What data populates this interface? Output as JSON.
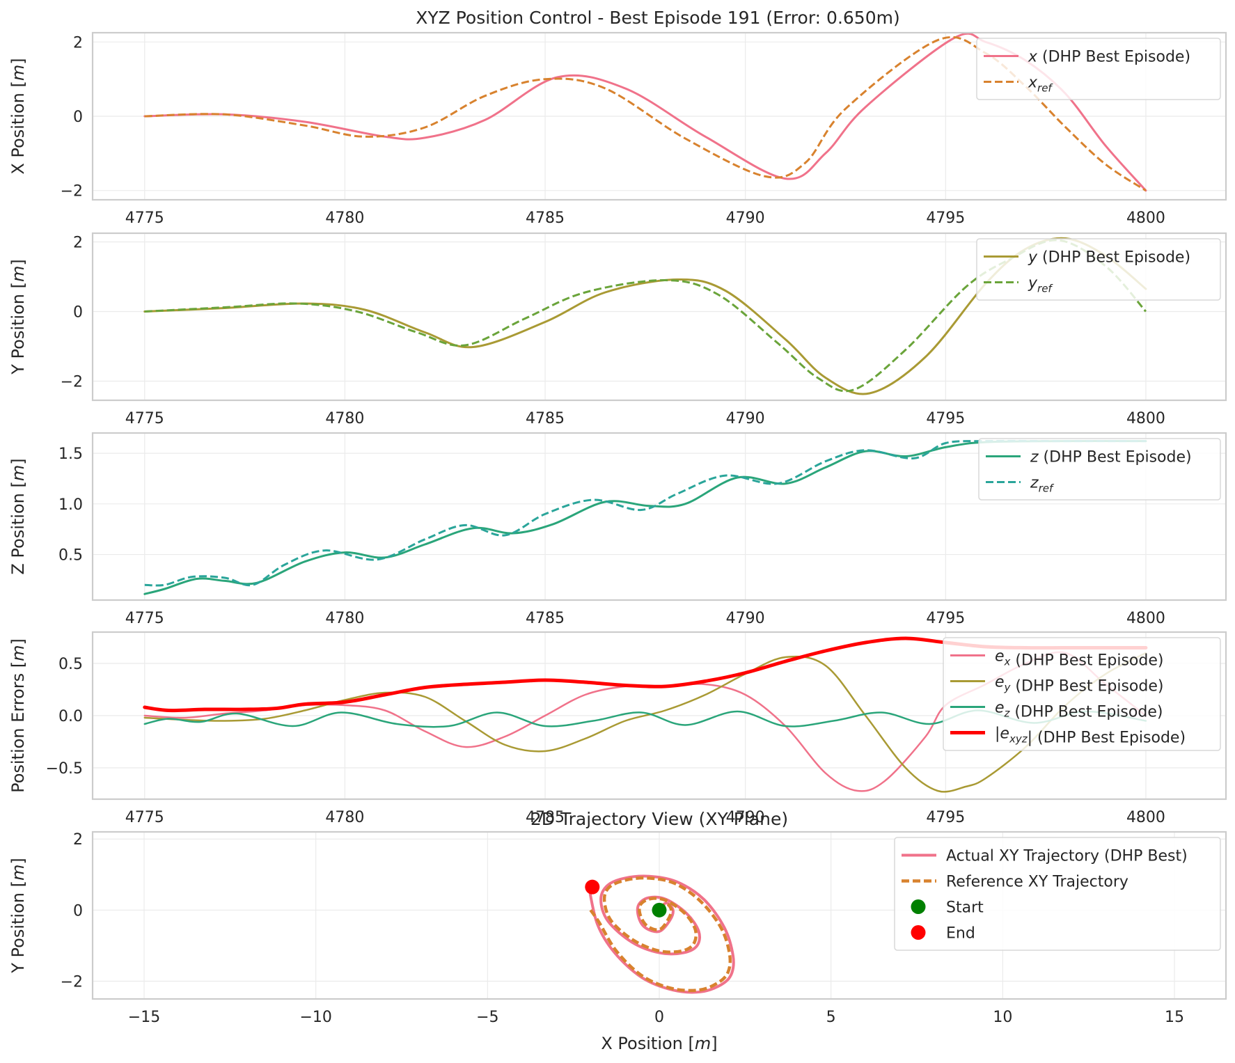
{
  "figure": {
    "title": "XYZ Position Control - Best Episode 191 (Error: 0.650m)"
  },
  "chart_data": [
    {
      "type": "line",
      "id": "x-position",
      "ylabel_parts": [
        [
          "X Position [",
          ""
        ],
        [
          "m",
          "i"
        ],
        [
          "]",
          ""
        ]
      ],
      "xlim": [
        4773.7,
        4802.0
      ],
      "ylim": [
        -2.25,
        2.25
      ],
      "xticks": [
        4775,
        4780,
        4785,
        4790,
        4795,
        4800
      ],
      "yticks": [
        -2,
        0,
        2
      ],
      "grid": true,
      "legend": "top-right",
      "series": [
        {
          "name": "x (DHP Best Episode)",
          "legend_parts": [
            [
              "x",
              "i"
            ],
            [
              " (DHP Best Episode)",
              ""
            ]
          ],
          "color": "#f0728a",
          "dash": "solid",
          "width": 3,
          "x": [
            4775,
            4777,
            4779,
            4781,
            4782,
            4783.5,
            4785.3,
            4787,
            4789,
            4791,
            4792,
            4793,
            4795.2,
            4796,
            4797,
            4798,
            4799,
            4800
          ],
          "y": [
            0,
            0.05,
            -0.15,
            -0.55,
            -0.58,
            -0.1,
            1.05,
            0.75,
            -0.55,
            -1.68,
            -1.0,
            0.25,
            2.1,
            2.0,
            1.5,
            0.6,
            -0.8,
            -2.0
          ]
        },
        {
          "name": "x_ref",
          "legend_parts": [
            [
              "x",
              "i"
            ],
            [
              "ref",
              "sub"
            ]
          ],
          "color": "#d8822e",
          "dash": "dashed",
          "width": 3,
          "x": [
            4775,
            4777,
            4779,
            4780.5,
            4782,
            4783.5,
            4785,
            4786.5,
            4788.5,
            4790.5,
            4791.5,
            4792.5,
            4794.8,
            4796,
            4797,
            4798,
            4799,
            4800
          ],
          "y": [
            0,
            0.05,
            -0.25,
            -0.55,
            -0.3,
            0.55,
            1.0,
            0.75,
            -0.6,
            -1.62,
            -1.25,
            0.2,
            2.05,
            1.7,
            0.8,
            -0.3,
            -1.3,
            -2.0
          ]
        }
      ]
    },
    {
      "type": "line",
      "id": "y-position",
      "ylabel_parts": [
        [
          "Y Position [",
          ""
        ],
        [
          "m",
          "i"
        ],
        [
          "]",
          ""
        ]
      ],
      "xlim": [
        4773.7,
        4802.0
      ],
      "ylim": [
        -2.55,
        2.25
      ],
      "xticks": [
        4775,
        4780,
        4785,
        4790,
        4795,
        4800
      ],
      "yticks": [
        -2,
        0,
        2
      ],
      "grid": true,
      "legend": "top-right",
      "series": [
        {
          "name": "y (DHP Best Episode)",
          "legend_parts": [
            [
              "y",
              "i"
            ],
            [
              " (DHP Best Episode)",
              ""
            ]
          ],
          "color": "#a99a34",
          "dash": "solid",
          "width": 3,
          "x": [
            4775,
            4777,
            4779,
            4780.5,
            4782,
            4783.2,
            4785,
            4786.5,
            4788.3,
            4789.5,
            4791,
            4792,
            4793.1,
            4794.5,
            4796,
            4797,
            4798,
            4799,
            4800
          ],
          "y": [
            0,
            0.1,
            0.23,
            0.05,
            -0.6,
            -1.02,
            -0.3,
            0.55,
            0.92,
            0.6,
            -0.8,
            -1.9,
            -2.35,
            -1.3,
            0.8,
            1.8,
            2.1,
            1.6,
            0.65
          ]
        },
        {
          "name": "y_ref",
          "legend_parts": [
            [
              "y",
              "i"
            ],
            [
              "ref",
              "sub"
            ]
          ],
          "color": "#6aa43a",
          "dash": "dashed",
          "width": 3,
          "x": [
            4775,
            4777,
            4778.8,
            4780.3,
            4781.8,
            4783,
            4784.5,
            4786,
            4788,
            4789.3,
            4790.8,
            4791.8,
            4792.7,
            4794,
            4795.5,
            4796.6,
            4797.8,
            4799,
            4800
          ],
          "y": [
            0,
            0.12,
            0.23,
            0.0,
            -0.6,
            -0.97,
            -0.2,
            0.55,
            0.9,
            0.5,
            -0.9,
            -1.9,
            -2.25,
            -1.1,
            0.7,
            1.5,
            2.05,
            1.3,
            0.0
          ]
        }
      ]
    },
    {
      "type": "line",
      "id": "z-position",
      "ylabel_parts": [
        [
          "Z Position [",
          ""
        ],
        [
          "m",
          "i"
        ],
        [
          "]",
          ""
        ]
      ],
      "xlim": [
        4773.7,
        4802.0
      ],
      "ylim": [
        0.05,
        1.7
      ],
      "xticks": [
        4775,
        4780,
        4785,
        4790,
        4795,
        4800
      ],
      "yticks": [
        0.5,
        1.0,
        1.5
      ],
      "ytick_labels": [
        "0.5",
        "1.0",
        "1.5"
      ],
      "grid": true,
      "legend": "top-right",
      "series": [
        {
          "name": "z (DHP Best Episode)",
          "legend_parts": [
            [
              "z",
              "i"
            ],
            [
              " (DHP Best Episode)",
              ""
            ]
          ],
          "color": "#2aa57a",
          "dash": "solid",
          "width": 3,
          "x": [
            4775,
            4775.5,
            4776.3,
            4777,
            4777.8,
            4779,
            4780,
            4781,
            4782,
            4783.2,
            4784.2,
            4785.2,
            4786.5,
            4787.6,
            4788.5,
            4789.8,
            4791,
            4792,
            4793,
            4794,
            4795,
            4796,
            4798,
            4800
          ],
          "y": [
            0.11,
            0.16,
            0.26,
            0.24,
            0.22,
            0.43,
            0.52,
            0.47,
            0.6,
            0.76,
            0.71,
            0.8,
            1.02,
            0.98,
            1.0,
            1.26,
            1.2,
            1.36,
            1.52,
            1.47,
            1.56,
            1.61,
            1.62,
            1.62
          ]
        },
        {
          "name": "z_ref",
          "legend_parts": [
            [
              "z",
              "i"
            ],
            [
              "ref",
              "sub"
            ]
          ],
          "color": "#2aa59a",
          "dash": "dashed",
          "width": 3,
          "x": [
            4775,
            4775.5,
            4776.2,
            4777,
            4777.7,
            4778.5,
            4779.5,
            4780.8,
            4782,
            4783,
            4784,
            4785,
            4786.2,
            4787.4,
            4788.3,
            4789.5,
            4790.8,
            4792,
            4793,
            4794.2,
            4795,
            4796,
            4798,
            4800
          ],
          "y": [
            0.2,
            0.2,
            0.28,
            0.27,
            0.2,
            0.4,
            0.54,
            0.45,
            0.65,
            0.79,
            0.69,
            0.9,
            1.04,
            0.94,
            1.1,
            1.28,
            1.2,
            1.42,
            1.53,
            1.45,
            1.6,
            1.62,
            1.62,
            1.62
          ]
        }
      ]
    },
    {
      "type": "line",
      "id": "position-errors",
      "ylabel_parts": [
        [
          "Position Errors [",
          ""
        ],
        [
          "m",
          "i"
        ],
        [
          "]",
          ""
        ]
      ],
      "xlim": [
        4773.7,
        4802.0
      ],
      "ylim": [
        -0.8,
        0.8
      ],
      "xticks": [
        4775,
        4780,
        4785,
        4790,
        4795,
        4800
      ],
      "yticks": [
        -0.5,
        0.0,
        0.5
      ],
      "ytick_labels": [
        "−0.5",
        "0.0",
        "0.5"
      ],
      "grid": true,
      "legend": "top-right",
      "series": [
        {
          "name": "e_x (DHP Best Episode)",
          "legend_parts": [
            [
              "e",
              "i"
            ],
            [
              "x",
              "sub"
            ],
            [
              " (DHP Best Episode)",
              ""
            ]
          ],
          "color": "#f0728a",
          "dash": "solid",
          "width": 2.5,
          "x": [
            4775,
            4776,
            4777,
            4778,
            4779,
            4780,
            4781,
            4782,
            4783,
            4784,
            4785,
            4786,
            4787,
            4788,
            4789,
            4790,
            4791,
            4792,
            4792.8,
            4793.5,
            4794.5,
            4795,
            4796,
            4797,
            4798,
            4799,
            4800
          ],
          "y": [
            0.0,
            -0.02,
            0.02,
            0.05,
            0.1,
            0.1,
            0.05,
            -0.15,
            -0.3,
            -0.2,
            0.0,
            0.2,
            0.28,
            0.28,
            0.3,
            0.2,
            -0.1,
            -0.55,
            -0.72,
            -0.62,
            -0.2,
            0.1,
            0.3,
            0.5,
            0.6,
            0.3,
            0.0
          ]
        },
        {
          "name": "e_y (DHP Best Episode)",
          "legend_parts": [
            [
              "e",
              "i"
            ],
            [
              "y",
              "sub"
            ],
            [
              " (DHP Best Episode)",
              ""
            ]
          ],
          "color": "#a99a34",
          "dash": "solid",
          "width": 2.5,
          "x": [
            4775,
            4776,
            4777,
            4778,
            4779,
            4780,
            4781,
            4782,
            4783,
            4784,
            4785,
            4786,
            4787,
            4788,
            4789,
            4790,
            4791,
            4792,
            4793,
            4794,
            4794.8,
            4795.5,
            4796,
            4797,
            4798,
            4799,
            4800
          ],
          "y": [
            -0.02,
            -0.04,
            -0.05,
            -0.03,
            0.05,
            0.15,
            0.22,
            0.18,
            -0.05,
            -0.28,
            -0.34,
            -0.22,
            -0.05,
            0.05,
            0.2,
            0.4,
            0.56,
            0.48,
            0.0,
            -0.5,
            -0.72,
            -0.68,
            -0.6,
            -0.3,
            0.1,
            0.4,
            0.6
          ]
        },
        {
          "name": "e_z (DHP Best Episode)",
          "legend_parts": [
            [
              "e",
              "i"
            ],
            [
              "z",
              "sub"
            ],
            [
              " (DHP Best Episode)",
              ""
            ]
          ],
          "color": "#2aa57a",
          "dash": "solid",
          "width": 2.5,
          "x": [
            4775,
            4775.6,
            4776.4,
            4777.3,
            4778.7,
            4779.9,
            4781.3,
            4782.6,
            4783.8,
            4785,
            4786.2,
            4787.4,
            4788.5,
            4789.8,
            4791,
            4792.2,
            4793.4,
            4794.6,
            4795.8,
            4797.2,
            4798.5,
            4800
          ],
          "y": [
            -0.08,
            -0.03,
            -0.06,
            0.02,
            -0.1,
            0.03,
            -0.08,
            -0.1,
            0.03,
            -0.1,
            -0.05,
            0.03,
            -0.09,
            0.04,
            -0.1,
            -0.05,
            0.03,
            -0.08,
            0.05,
            -0.07,
            0.04,
            -0.05
          ]
        },
        {
          "name": "|e_xyz| (DHP Best Episode)",
          "legend_parts": [
            [
              "|",
              ""
            ],
            [
              "e",
              "i"
            ],
            [
              "xyz",
              "sub"
            ],
            [
              "| (DHP Best Episode)",
              ""
            ]
          ],
          "color": "#ff0000",
          "dash": "solid",
          "width": 5,
          "x": [
            4775,
            4775.6,
            4776.5,
            4777.5,
            4778.3,
            4779,
            4780,
            4781,
            4782,
            4783,
            4784,
            4785,
            4786,
            4787,
            4788,
            4789,
            4790,
            4791,
            4792,
            4793,
            4794,
            4795,
            4796,
            4797,
            4798,
            4799,
            4800
          ],
          "y": [
            0.08,
            0.05,
            0.06,
            0.06,
            0.07,
            0.11,
            0.13,
            0.2,
            0.27,
            0.3,
            0.32,
            0.34,
            0.32,
            0.29,
            0.28,
            0.33,
            0.41,
            0.52,
            0.62,
            0.7,
            0.74,
            0.7,
            0.66,
            0.65,
            0.65,
            0.65,
            0.65
          ]
        }
      ]
    },
    {
      "type": "line",
      "id": "trajectory-xy",
      "subtitle": "2D Trajectory View (XY Plane)",
      "xlabel_parts": [
        [
          "X Position [",
          ""
        ],
        [
          "m",
          "i"
        ],
        [
          "]",
          ""
        ]
      ],
      "ylabel_parts": [
        [
          "Y Position [",
          ""
        ],
        [
          "m",
          "i"
        ],
        [
          "]",
          ""
        ]
      ],
      "xlim": [
        -16.5,
        16.5
      ],
      "ylim": [
        -2.5,
        2.2
      ],
      "xticks": [
        -15,
        -10,
        -5,
        0,
        5,
        10,
        15
      ],
      "yticks": [
        -2,
        0,
        2
      ],
      "grid": true,
      "legend": "top-right",
      "series": [
        {
          "name": "Actual XY Trajectory (DHP Best)",
          "legend_parts": [
            [
              "Actual XY Trajectory (DHP Best)",
              ""
            ]
          ],
          "color": "#f0728a",
          "dash": "solid",
          "width": 4,
          "x": [
            0.0,
            0.2,
            0.4,
            0.3,
            0.0,
            -0.4,
            -0.6,
            -0.6,
            -0.3,
            0.2,
            0.8,
            1.15,
            1.1,
            0.7,
            0.0,
            -0.8,
            -1.5,
            -1.7,
            -1.5,
            -1.0,
            -0.3,
            0.5,
            1.3,
            1.9,
            2.15,
            2.1,
            1.8,
            1.2,
            0.4,
            -0.5,
            -1.3,
            -1.8,
            -2.05
          ],
          "y": [
            0.0,
            0.2,
            0.0,
            -0.3,
            -0.6,
            -0.5,
            -0.2,
            0.15,
            0.35,
            0.3,
            -0.1,
            -0.6,
            -1.0,
            -1.2,
            -1.2,
            -0.9,
            -0.3,
            0.3,
            0.7,
            0.9,
            0.95,
            0.8,
            0.3,
            -0.5,
            -1.3,
            -1.8,
            -2.1,
            -2.3,
            -2.25,
            -1.9,
            -1.2,
            -0.4,
            0.65
          ]
        },
        {
          "name": "Reference XY Trajectory",
          "legend_parts": [
            [
              "Reference XY Trajectory",
              ""
            ]
          ],
          "color": "#d8822e",
          "dash": "dashed",
          "width": 4.5,
          "x": [
            0.0,
            0.2,
            0.35,
            0.25,
            0.0,
            -0.35,
            -0.55,
            -0.55,
            -0.25,
            0.2,
            0.75,
            1.05,
            1.0,
            0.65,
            0.0,
            -0.75,
            -1.4,
            -1.6,
            -1.45,
            -0.95,
            -0.3,
            0.45,
            1.2,
            1.8,
            2.05,
            2.0,
            1.7,
            1.15,
            0.35,
            -0.5,
            -1.25,
            -1.75,
            -2.0
          ],
          "y": [
            0.0,
            0.18,
            0.0,
            -0.28,
            -0.55,
            -0.45,
            -0.15,
            0.15,
            0.32,
            0.27,
            -0.1,
            -0.55,
            -0.95,
            -1.15,
            -1.15,
            -0.85,
            -0.3,
            0.28,
            0.65,
            0.85,
            0.9,
            0.75,
            0.25,
            -0.5,
            -1.25,
            -1.75,
            -2.05,
            -2.25,
            -2.2,
            -1.85,
            -1.15,
            -0.35,
            0.0
          ]
        }
      ],
      "points": [
        {
          "name": "Start",
          "legend_parts": [
            [
              "Start",
              ""
            ]
          ],
          "color": "#008000",
          "x": 0.0,
          "y": 0.0
        },
        {
          "name": "End",
          "legend_parts": [
            [
              "End",
              ""
            ]
          ],
          "color": "#ff0000",
          "x": -1.95,
          "y": 0.65
        }
      ]
    }
  ]
}
